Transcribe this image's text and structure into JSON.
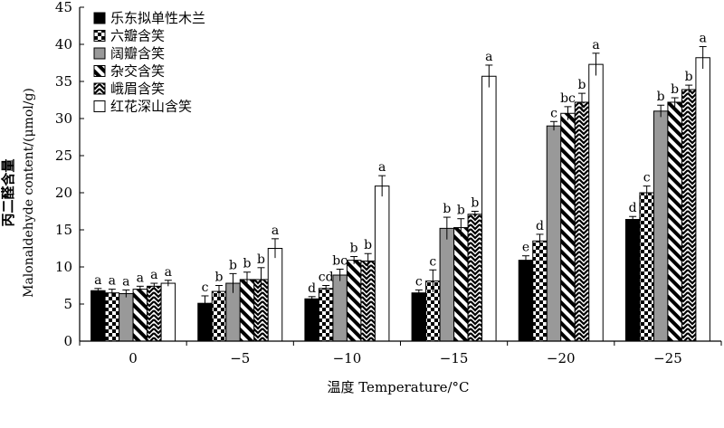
{
  "chart_data": {
    "type": "bar",
    "xlabel": "温度 Temperature/°C",
    "ylabel": "丙二醛含量 Malonaldehyde content/(μmol/g)",
    "ylabel_cn": "丙二醛含量",
    "ylabel_en": "Malonaldehyde content/(μmol/g)",
    "ylim": [
      0,
      45
    ],
    "yticks": [
      0,
      5,
      10,
      15,
      20,
      25,
      30,
      35,
      40,
      45
    ],
    "categories": [
      "0",
      "−5",
      "−10",
      "−15",
      "−20",
      "−25"
    ],
    "legend_position": "top-left",
    "grid": false,
    "series": [
      {
        "name": "乐东拟单性木兰",
        "pattern": "solid-black",
        "values": [
          6.8,
          5.1,
          5.7,
          6.5,
          10.9,
          16.4
        ],
        "errors": [
          0.3,
          1.0,
          0.3,
          0.4,
          0.6,
          0.4
        ],
        "labels": [
          "a",
          "c",
          "d",
          "c",
          "e",
          "d"
        ]
      },
      {
        "name": "六瓣含笑",
        "pattern": "checker",
        "values": [
          6.5,
          6.7,
          7.1,
          8.1,
          13.5,
          20.0
        ],
        "errors": [
          0.5,
          0.8,
          0.4,
          1.5,
          0.9,
          0.9
        ],
        "labels": [
          "a",
          "b",
          "cd",
          "c",
          "d",
          "c"
        ]
      },
      {
        "name": "阔瓣含笑",
        "pattern": "solid-gray",
        "values": [
          6.4,
          7.8,
          8.9,
          15.2,
          29.0,
          31.0
        ],
        "errors": [
          0.5,
          1.3,
          0.8,
          1.5,
          0.6,
          0.8
        ],
        "labels": [
          "a",
          "b",
          "bc",
          "b",
          "c",
          "b"
        ]
      },
      {
        "name": "杂交含笑",
        "pattern": "diagonal",
        "values": [
          7.0,
          8.3,
          10.9,
          15.3,
          30.7,
          32.2
        ],
        "errors": [
          0.4,
          1.0,
          0.5,
          1.2,
          0.9,
          0.6
        ],
        "labels": [
          "a",
          "b",
          "b",
          "b",
          "bc",
          "b"
        ]
      },
      {
        "name": "峨眉含笑",
        "pattern": "chevron",
        "values": [
          7.4,
          8.3,
          10.8,
          17.1,
          32.2,
          33.9
        ],
        "errors": [
          0.4,
          1.6,
          1.0,
          0.4,
          1.2,
          0.6
        ],
        "labels": [
          "a",
          "b",
          "b",
          "b",
          "b",
          "b"
        ]
      },
      {
        "name": "红花深山含笑",
        "pattern": "white",
        "values": [
          7.8,
          12.5,
          20.9,
          35.7,
          37.3,
          38.2
        ],
        "errors": [
          0.4,
          1.3,
          1.4,
          1.5,
          1.5,
          1.5
        ],
        "labels": [
          "a",
          "a",
          "a",
          "a",
          "a",
          "a"
        ]
      }
    ]
  },
  "colors": {
    "solid_black": "#000000",
    "solid_gray": "#999999",
    "white": "#ffffff",
    "axis": "#000000"
  }
}
